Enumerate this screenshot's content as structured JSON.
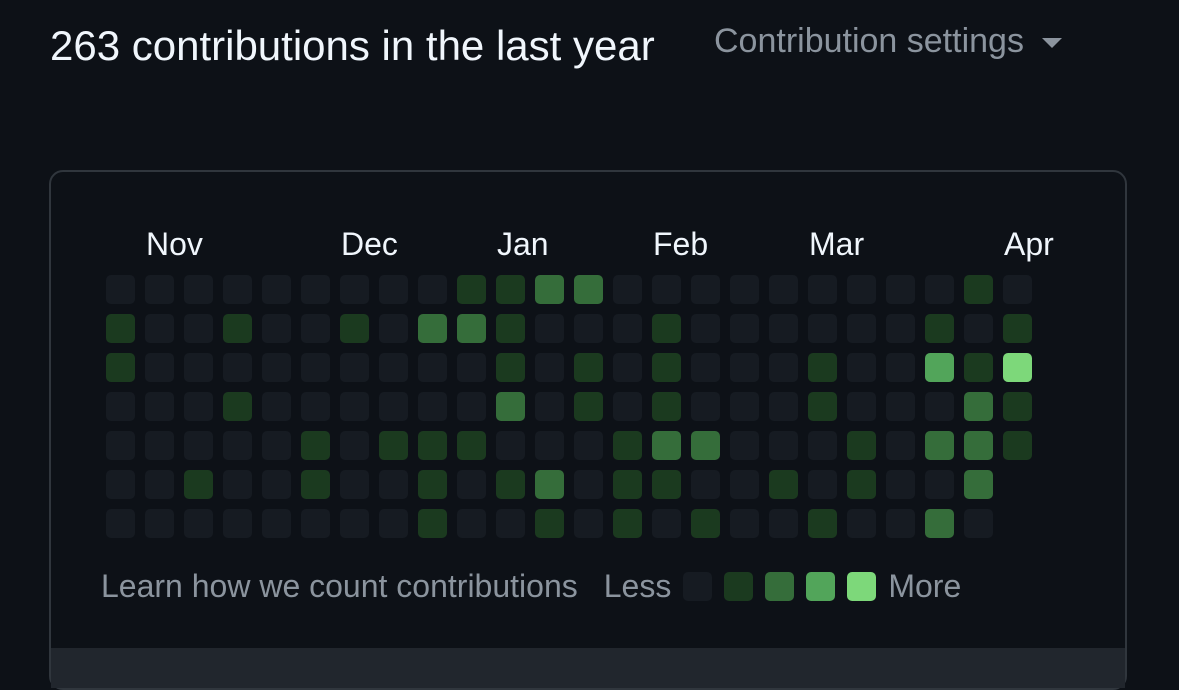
{
  "header": {
    "title": "263 contributions in the last year",
    "settings_label": "Contribution settings"
  },
  "colors": {
    "background": "#0d1117",
    "level0": "#161b22",
    "level1": "#1b3a1f",
    "level2": "#356d3a",
    "level3": "#52a55a",
    "level4": "#7dd87a"
  },
  "months": [
    "Nov",
    "Dec",
    "Jan",
    "Feb",
    "Mar",
    "Apr"
  ],
  "grid_levels": [
    [
      0,
      1,
      1,
      0,
      0,
      0,
      0
    ],
    [
      0,
      0,
      0,
      0,
      0,
      0,
      0
    ],
    [
      0,
      0,
      0,
      0,
      0,
      1,
      0
    ],
    [
      0,
      1,
      0,
      1,
      0,
      0,
      0
    ],
    [
      0,
      0,
      0,
      0,
      0,
      0,
      0
    ],
    [
      0,
      0,
      0,
      0,
      1,
      1,
      0
    ],
    [
      0,
      1,
      0,
      0,
      0,
      0,
      0
    ],
    [
      0,
      0,
      0,
      0,
      1,
      0,
      0
    ],
    [
      0,
      2,
      0,
      0,
      1,
      1,
      1
    ],
    [
      1,
      2,
      0,
      0,
      1,
      0,
      0
    ],
    [
      1,
      1,
      1,
      2,
      0,
      1,
      0
    ],
    [
      2,
      0,
      0,
      0,
      0,
      2,
      1
    ],
    [
      2,
      0,
      1,
      1,
      0,
      0,
      0
    ],
    [
      0,
      0,
      0,
      0,
      1,
      1,
      1
    ],
    [
      0,
      1,
      1,
      1,
      2,
      1,
      0
    ],
    [
      0,
      0,
      0,
      0,
      2,
      0,
      1
    ],
    [
      0,
      0,
      0,
      0,
      0,
      0,
      0
    ],
    [
      0,
      0,
      0,
      0,
      0,
      1,
      0
    ],
    [
      0,
      0,
      1,
      1,
      0,
      0,
      1
    ],
    [
      0,
      0,
      0,
      0,
      1,
      1,
      0
    ],
    [
      0,
      0,
      0,
      0,
      0,
      0,
      0
    ],
    [
      0,
      1,
      3,
      0,
      2,
      0,
      2
    ],
    [
      1,
      0,
      1,
      2,
      2,
      2,
      0
    ],
    [
      0,
      1,
      4,
      1,
      1,
      null,
      null
    ]
  ],
  "footer": {
    "learn_label": "Learn how we count contributions",
    "less_label": "Less",
    "more_label": "More"
  }
}
